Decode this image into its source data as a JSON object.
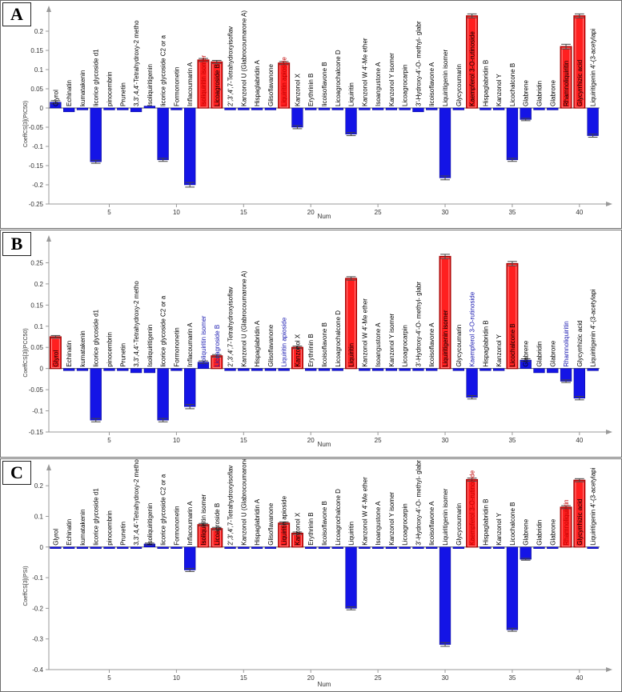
{
  "panels": [
    {
      "letter": "A",
      "chart_data": {
        "type": "bar",
        "title": "",
        "xlabel": "Num",
        "ylabel": "CoeffCS[3](PIC50)",
        "ylim": [
          -0.25,
          0.25
        ],
        "yticks": [
          -0.25,
          -0.2,
          -0.15,
          -0.1,
          -0.05,
          0,
          0.05,
          0.1,
          0.15,
          0.2
        ],
        "xticks": [
          5,
          10,
          15,
          20,
          25,
          30,
          35,
          40
        ],
        "categories": [
          "Glyrol",
          "Echinatin",
          "kumatakenin",
          "licorice glycoside d1",
          "pinocembrin",
          "Prunetin",
          "3,3',4,4'-Tetrahydroxy-2 metho",
          "Isoliquiritigenin",
          "licorice glycoside C2 or a",
          "Formononetin",
          "Inflacoumarin A",
          "Isoliquiritin isomer",
          "Licoagroside B",
          "2',3',4',7-Tetrahydroxyisoflav",
          "Kanzonol U (Glabrocoumarone A)",
          "Hispaglabridin A",
          "Glisoflavanone",
          "Liquiritin apioside",
          "Kanzonol X",
          "Erythrinin B",
          "licoisoflavone B",
          "Licoagrochalcone D",
          "Liquiritin",
          "Kanzonol W 4'-Me ether",
          "Isoangustone A",
          "Kanzonol Y isomer",
          "Licoagrocarpin",
          "3'-Hydroxy-4'-O- methyl- glabr",
          "licoisoflavone A",
          "Liquiritigenin isomer",
          "Glycycoumarin",
          "Kaempferol 3-O-rutinoside",
          "Hispaglabridin B",
          "Kanzonol Y",
          "Licochalcone B",
          "Glabrene",
          "Glabridin",
          "Glabrone",
          "Rhamnoliquiritin",
          "Glycyrrhizic acid",
          "Liquiritigenin 4'-(3-acetylapi"
        ],
        "label_colors": [
          "#000000",
          "#000000",
          "#000000",
          "#000000",
          "#000000",
          "#000000",
          "#000000",
          "#000000",
          "#000000",
          "#000000",
          "#000000",
          "#c00000",
          "#000000",
          "#000000",
          "#000000",
          "#000000",
          "#000000",
          "#c00000",
          "#000000",
          "#000000",
          "#000000",
          "#000000",
          "#000000",
          "#000000",
          "#000000",
          "#000000",
          "#000000",
          "#000000",
          "#000000",
          "#000000",
          "#000000",
          "#000000",
          "#000000",
          "#000000",
          "#000000",
          "#000000",
          "#000000",
          "#000000",
          "#000000",
          "#000000",
          "#000000"
        ],
        "values": [
          0.015,
          -0.01,
          -0.005,
          -0.14,
          -0.005,
          -0.005,
          -0.01,
          0.005,
          -0.135,
          -0.005,
          -0.2,
          0.125,
          0.12,
          -0.005,
          -0.005,
          -0.005,
          -0.005,
          0.117,
          -0.05,
          -0.005,
          -0.005,
          -0.005,
          -0.068,
          -0.005,
          -0.005,
          -0.005,
          -0.005,
          -0.01,
          -0.005,
          -0.182,
          -0.005,
          0.24,
          -0.005,
          -0.005,
          -0.135,
          -0.03,
          -0.005,
          -0.005,
          0.16,
          0.24,
          -0.072
        ],
        "errors": [
          0.004,
          0,
          0,
          0.004,
          0,
          0,
          0,
          0,
          0.004,
          0,
          0.006,
          0.004,
          0.004,
          0,
          0,
          0,
          0,
          0.004,
          0.004,
          0,
          0,
          0,
          0.004,
          0,
          0,
          0,
          0,
          0,
          0,
          0.005,
          0,
          0.005,
          0,
          0,
          0.004,
          0.003,
          0,
          0,
          0.006,
          0.005,
          0.004
        ]
      }
    },
    {
      "letter": "B",
      "chart_data": {
        "type": "bar",
        "title": "",
        "xlabel": "Num",
        "ylabel": "CoeffCS[3](PCC50)",
        "ylim": [
          -0.15,
          0.3
        ],
        "yticks": [
          -0.15,
          -0.1,
          -0.05,
          0,
          0.05,
          0.1,
          0.15,
          0.2,
          0.25
        ],
        "xticks": [
          5,
          10,
          15,
          20,
          25,
          30,
          35,
          40
        ],
        "categories": [
          "Glyrol",
          "Echinatin",
          "kumatakenin",
          "licorice glycoside d1",
          "pinocembrin",
          "Prunetin",
          "3,3',4,4'-Tetrahydroxy-2 metho",
          "Isoliquiritigenin",
          "licorice glycoside C2 or a",
          "Formononetin",
          "Inflacoumarin A",
          "Isoliquiritin isomer",
          "Licoagroside B",
          "2',3',4',7-Tetrahydroxyisoflav",
          "Kanzonol U (Glabrocoumarone A)",
          "Hispaglabridin A",
          "Glisoflavanone",
          "Liquiritin apioside",
          "Kanzonol X",
          "Erythrinin B",
          "licoisoflavone B",
          "Licoagrochalcone D",
          "Liquiritin",
          "Kanzonol W 4'-Me ether",
          "Isoangustone A",
          "Kanzonol Y isomer",
          "Licoagrocarpin",
          "3'-Hydroxy-4'-O- methyl- glabr",
          "licoisoflavone A",
          "Liquiritigenin isomer",
          "Glycycoumarin",
          "Kaempferol 3-O-rutinoside",
          "Hispaglabridin B",
          "Kanzonol Y",
          "Licochalcone B",
          "Glabrene",
          "Glabridin",
          "Glabrone",
          "Rhamnoliquiritin",
          "Glycyrrhizic acid",
          "Liquiritigenin 4'-(3-acetylapi"
        ],
        "label_colors": [
          "#000000",
          "#000000",
          "#000000",
          "#000000",
          "#000000",
          "#000000",
          "#000000",
          "#000000",
          "#000000",
          "#000000",
          "#000000",
          "#1a1ab0",
          "#1a1ab0",
          "#000000",
          "#000000",
          "#000000",
          "#000000",
          "#1a1ab0",
          "#000000",
          "#000000",
          "#000000",
          "#000000",
          "#000000",
          "#000000",
          "#000000",
          "#000000",
          "#000000",
          "#000000",
          "#000000",
          "#000000",
          "#000000",
          "#1a1ab0",
          "#000000",
          "#000000",
          "#000000",
          "#000000",
          "#000000",
          "#000000",
          "#1a1ab0",
          "#000000",
          "#000000"
        ],
        "values": [
          0.075,
          -0.005,
          -0.005,
          -0.122,
          -0.005,
          -0.005,
          -0.01,
          -0.01,
          -0.122,
          -0.005,
          -0.09,
          0.015,
          0.03,
          -0.005,
          -0.005,
          -0.005,
          -0.005,
          -0.005,
          0.05,
          -0.005,
          -0.005,
          -0.005,
          0.213,
          -0.005,
          -0.005,
          -0.005,
          -0.005,
          -0.005,
          -0.005,
          0.265,
          -0.005,
          -0.068,
          -0.005,
          -0.005,
          0.248,
          0.02,
          -0.01,
          -0.01,
          -0.03,
          -0.07,
          -0.005
        ],
        "errors": [
          0.003,
          0,
          0,
          0.004,
          0,
          0,
          0,
          0,
          0.004,
          0,
          0.005,
          0.003,
          0.003,
          0,
          0,
          0,
          0,
          0,
          0.003,
          0,
          0,
          0,
          0.004,
          0,
          0,
          0,
          0,
          0,
          0,
          0.005,
          0,
          0.004,
          0,
          0,
          0.005,
          0.003,
          0,
          0,
          0.003,
          0.004,
          0
        ]
      }
    },
    {
      "letter": "C",
      "chart_data": {
        "type": "bar",
        "title": "",
        "xlabel": "Num",
        "ylabel": "CoeffCS[3](PSI)",
        "ylim": [
          -0.4,
          0.25
        ],
        "yticks": [
          -0.4,
          -0.3,
          -0.2,
          -0.1,
          0,
          0.1,
          0.2
        ],
        "xticks": [
          5,
          10,
          15,
          20,
          25,
          30,
          35,
          40
        ],
        "categories": [
          "Glyrol",
          "Echinatin",
          "kumatakenin",
          "licorice glycoside d1",
          "pinocembrin",
          "Prunetin",
          "3,3',4,4'-Tetrahydroxy-2 metho",
          "Isoliquiritigenin",
          "licorice glycoside C2 or a",
          "Formononetin",
          "Inflacoumarin A",
          "Isoliquiritin isomer",
          "Licoagroside B",
          "2',3',4',7-Tetrahydroxyisoflav",
          "Kanzonol U (Glabrocoumarone A)",
          "Hispaglabridin A",
          "Glisoflavanone",
          "Liquiritin apioside",
          "Kanzonol X",
          "Erythrinin B",
          "licoisoflavone B",
          "Licoagrochalcone D",
          "Liquiritin",
          "Kanzonol W 4'-Me ether",
          "Isoangustone A",
          "Kanzonol Y isomer",
          "Licoagrocarpin",
          "3'-Hydroxy-4'-O- methyl- glabr",
          "licoisoflavone A",
          "Liquiritigenin isomer",
          "Glycycoumarin",
          "Kaempferol 3-O-rutinoside",
          "Hispaglabridin B",
          "Kanzonol Y",
          "Licochalcone B",
          "Glabrene",
          "Glabridin",
          "Glabrone",
          "Rhamnoliquiritin",
          "Glycyrrhizic acid",
          "Liquiritigenin 4'-(3-acetylapi"
        ],
        "label_colors": [
          "#000000",
          "#000000",
          "#000000",
          "#000000",
          "#000000",
          "#000000",
          "#000000",
          "#000000",
          "#000000",
          "#000000",
          "#000000",
          "#000000",
          "#000000",
          "#000000",
          "#000000",
          "#000000",
          "#000000",
          "#000000",
          "#000000",
          "#000000",
          "#000000",
          "#000000",
          "#000000",
          "#000000",
          "#000000",
          "#000000",
          "#000000",
          "#000000",
          "#000000",
          "#000000",
          "#000000",
          "#c00000",
          "#000000",
          "#000000",
          "#000000",
          "#000000",
          "#000000",
          "#000000",
          "#c00000",
          "#000000",
          "#000000"
        ],
        "values": [
          -0.005,
          -0.005,
          -0.005,
          -0.005,
          -0.005,
          -0.005,
          -0.005,
          0.01,
          -0.005,
          -0.005,
          -0.075,
          0.073,
          0.06,
          -0.005,
          -0.005,
          -0.005,
          -0.005,
          0.078,
          0.045,
          -0.005,
          -0.005,
          -0.005,
          -0.2,
          -0.005,
          -0.005,
          -0.005,
          -0.005,
          -0.005,
          -0.005,
          -0.318,
          -0.005,
          0.22,
          -0.005,
          -0.005,
          -0.27,
          -0.04,
          -0.005,
          -0.005,
          0.13,
          0.218,
          -0.005
        ],
        "errors": [
          0,
          0,
          0,
          0,
          0,
          0,
          0,
          0.003,
          0,
          0,
          0.005,
          0.004,
          0.004,
          0,
          0,
          0,
          0,
          0.004,
          0.004,
          0,
          0,
          0,
          0.005,
          0,
          0,
          0,
          0,
          0,
          0,
          0.006,
          0,
          0.005,
          0,
          0,
          0.005,
          0.003,
          0,
          0,
          0.005,
          0.005,
          0
        ]
      }
    }
  ],
  "colors": {
    "positive": "#ff1f1f",
    "positive_edge": "#a00000",
    "negative": "#1414e6",
    "negative_edge": "#00008b",
    "error": "#444444"
  }
}
